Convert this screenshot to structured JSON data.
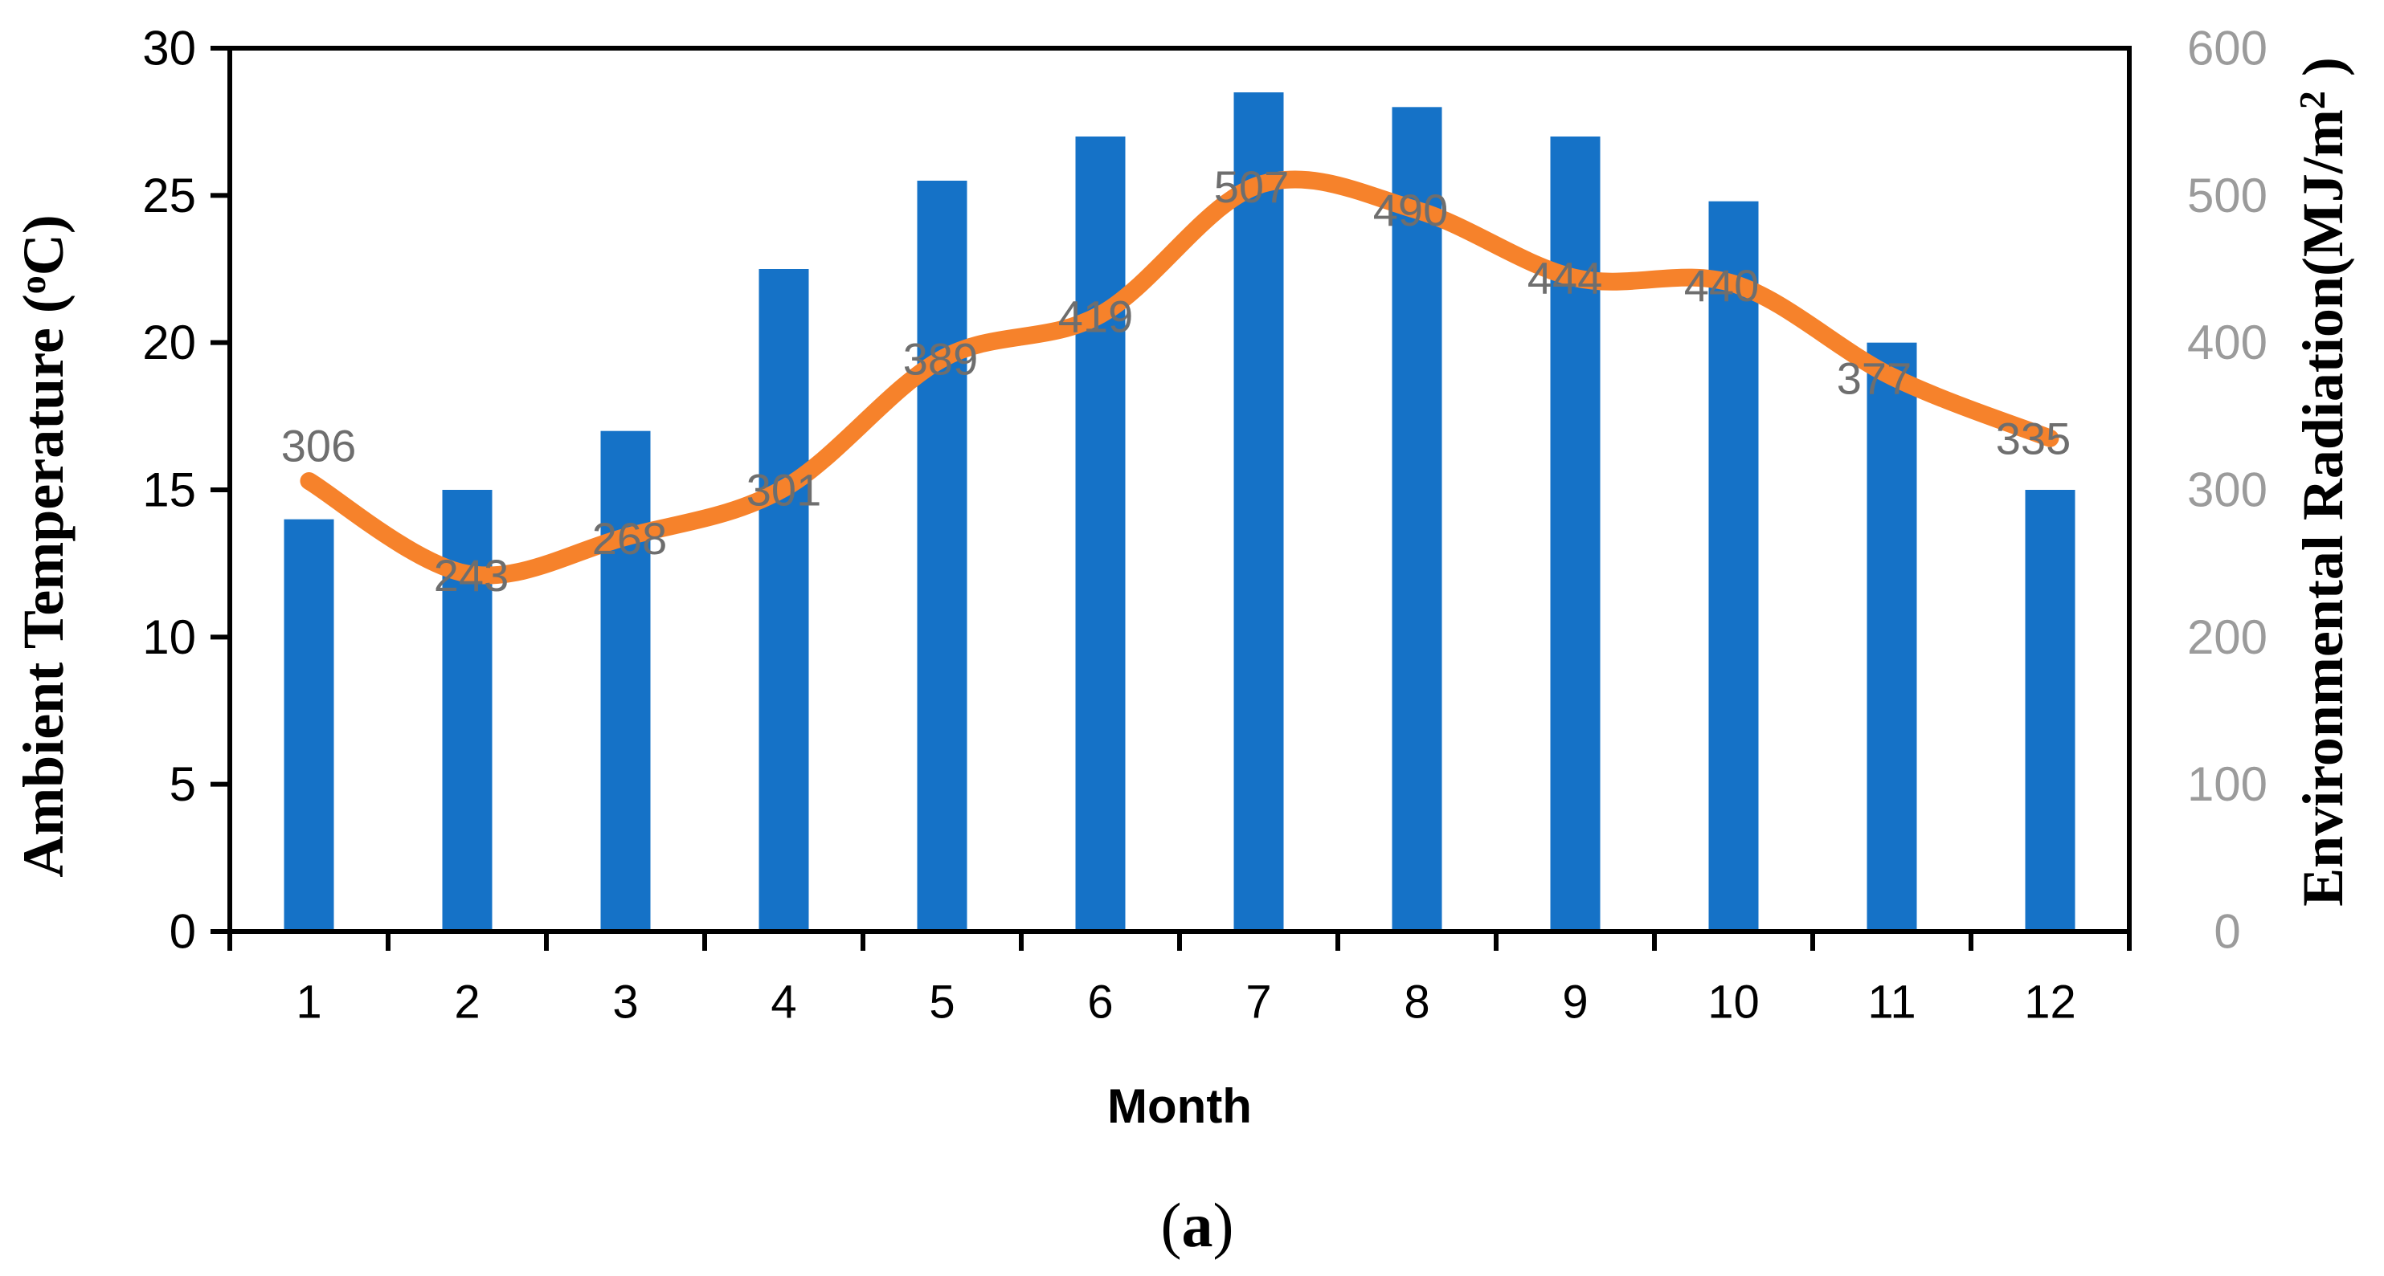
{
  "figure": {
    "caption_open": "(",
    "caption_letter": "a",
    "caption_close": ")"
  },
  "chart_data": {
    "type": "combo-bar-line",
    "title": "",
    "xlabel": "Month",
    "categories": [
      "1",
      "2",
      "3",
      "4",
      "5",
      "6",
      "7",
      "8",
      "9",
      "10",
      "11",
      "12"
    ],
    "grid": false,
    "legend_position": "none",
    "series": [
      {
        "name": "Ambient Temperature",
        "type": "bar",
        "axis": "left",
        "color": "#1572C7",
        "values": [
          14,
          15,
          17,
          22.5,
          25.5,
          27,
          28.5,
          28,
          27,
          24.8,
          20,
          15
        ]
      },
      {
        "name": "Environmental Radiation",
        "type": "line",
        "axis": "right",
        "color": "#F6822B",
        "values": [
          306,
          243,
          268,
          301,
          389,
          419,
          507,
          490,
          444,
          440,
          377,
          335
        ],
        "data_labels": [
          "306",
          "243",
          "268",
          "301",
          "389",
          "419",
          "507",
          "490",
          "444",
          "440",
          "377",
          "335"
        ],
        "label_color": "#6E6E6E",
        "label_offsets": [
          [
            12,
            -44
          ],
          [
            5,
            2
          ],
          [
            5,
            2
          ],
          [
            0,
            2
          ],
          [
            -2,
            0
          ],
          [
            -6,
            2
          ],
          [
            -9,
            2
          ],
          [
            -8,
            0
          ],
          [
            -13,
            0
          ],
          [
            -15,
            2
          ],
          [
            -22,
            2
          ],
          [
            -21,
            0
          ]
        ]
      }
    ],
    "left_axis": {
      "title_main": "Ambient Temperature (",
      "title_sup": "o",
      "title_end": "C)",
      "min": 0,
      "max": 30,
      "step": 5,
      "tick_labels": [
        "0",
        "5",
        "10",
        "15",
        "20",
        "25",
        "30"
      ],
      "tick_color": "#000000"
    },
    "right_axis": {
      "title_main": "Environmental Radiation(MJ/m",
      "title_sup": "2",
      "title_end": " )",
      "min": 0,
      "max": 600,
      "step": 100,
      "tick_labels": [
        "0",
        "100",
        "200",
        "300",
        "400",
        "500",
        "600"
      ],
      "tick_color": "#9B9B9B"
    }
  }
}
